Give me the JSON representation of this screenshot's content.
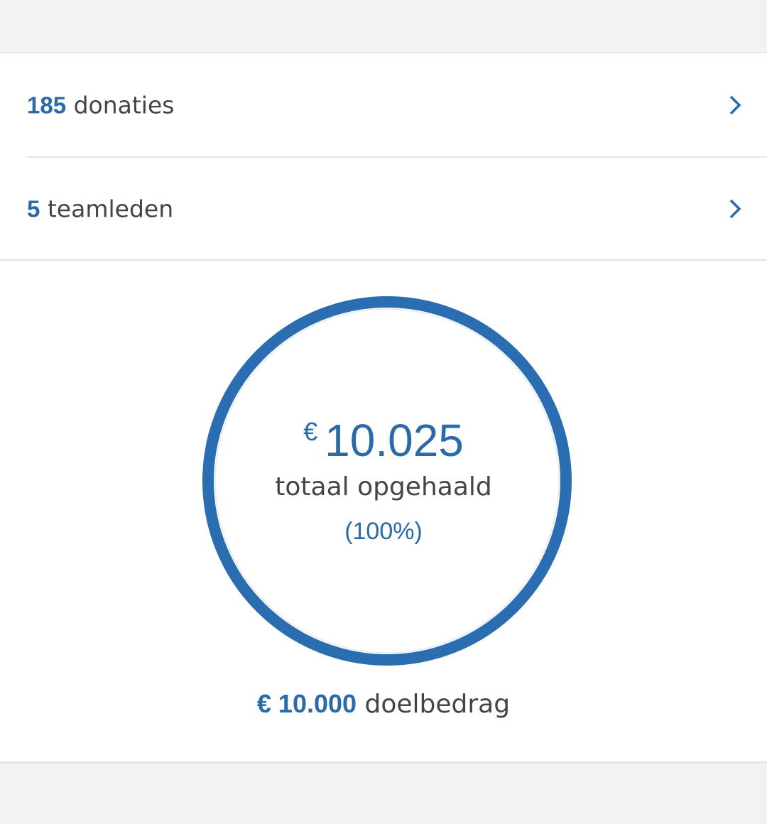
{
  "rows": [
    {
      "count": "185",
      "label": "donaties"
    },
    {
      "count": "5",
      "label": "teamleden"
    }
  ],
  "progress": {
    "currency": "€",
    "amount": "10.025",
    "label": "totaal opgehaald",
    "percent": "(100%)"
  },
  "goal": {
    "amount": "€ 10.000",
    "label": "doelbedrag"
  }
}
